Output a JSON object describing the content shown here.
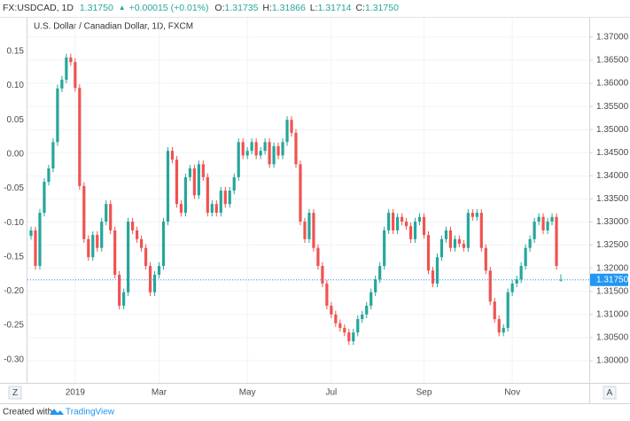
{
  "header": {
    "symbol": "FX:USDCAD, 1D",
    "price": "1.31750",
    "arrow": "▲",
    "change": "+0.00015 (+0.01%)",
    "ohlc": [
      {
        "key": "O:",
        "value": "1.31735"
      },
      {
        "key": "H:",
        "value": "1.31866"
      },
      {
        "key": "L:",
        "value": "1.31714"
      },
      {
        "key": "C:",
        "value": "1.31750"
      }
    ]
  },
  "footer": {
    "prefix": "Created with",
    "brand": "TradingView"
  },
  "buttons": {
    "left": "Z",
    "right": "A"
  },
  "chart_data": {
    "type": "candlestick",
    "title": "U.S. Dollar / Canadian Dollar, 1D, FXCM",
    "up_color": "#26a69a",
    "down_color": "#ef5350",
    "grid": true,
    "categories": [
      null,
      null,
      null,
      null,
      null,
      null,
      null,
      null,
      null,
      null,
      "2019",
      null,
      null,
      null,
      null,
      null,
      null,
      null,
      null,
      null,
      null,
      null,
      null,
      null,
      null,
      null,
      null,
      null,
      null,
      "Mar",
      null,
      null,
      null,
      null,
      null,
      null,
      null,
      null,
      null,
      null,
      null,
      null,
      null,
      null,
      null,
      null,
      null,
      null,
      null,
      "May",
      null,
      null,
      null,
      null,
      null,
      null,
      null,
      null,
      null,
      null,
      null,
      null,
      null,
      null,
      null,
      null,
      null,
      null,
      "Jul",
      null,
      null,
      null,
      null,
      null,
      null,
      null,
      null,
      null,
      null,
      null,
      null,
      null,
      null,
      null,
      null,
      null,
      null,
      null,
      null,
      "Sep",
      null,
      null,
      null,
      null,
      null,
      null,
      null,
      null,
      null,
      null,
      null,
      null,
      null,
      null,
      null,
      null,
      null,
      null,
      null,
      "Nov",
      null,
      null,
      null,
      null,
      null,
      null,
      null,
      null,
      null,
      null,
      null,
      null
    ],
    "candles": [
      [
        1.327,
        1.329,
        1.3262,
        1.3282
      ],
      [
        1.3282,
        1.329,
        1.3197,
        1.3205
      ],
      [
        1.3205,
        1.3328,
        1.3197,
        1.332
      ],
      [
        1.332,
        1.3395,
        1.3312,
        1.3387
      ],
      [
        1.3387,
        1.3424,
        1.3379,
        1.3416
      ],
      [
        1.3416,
        1.3481,
        1.3408,
        1.3473
      ],
      [
        1.3473,
        1.3597,
        1.3465,
        1.3589
      ],
      [
        1.3589,
        1.3616,
        1.3581,
        1.3608
      ],
      [
        1.3608,
        1.3664,
        1.36,
        1.3656
      ],
      [
        1.3656,
        1.3664,
        1.3638,
        1.3646
      ],
      [
        1.3646,
        1.3654,
        1.3582,
        1.359
      ],
      [
        1.359,
        1.3598,
        1.337,
        1.3378
      ],
      [
        1.3378,
        1.3386,
        1.3255,
        1.3263
      ],
      [
        1.3263,
        1.3271,
        1.3216,
        1.3224
      ],
      [
        1.3224,
        1.328,
        1.3216,
        1.3272
      ],
      [
        1.3272,
        1.328,
        1.3236,
        1.3244
      ],
      [
        1.3244,
        1.3309,
        1.3236,
        1.3301
      ],
      [
        1.3301,
        1.3347,
        1.3293,
        1.3339
      ],
      [
        1.3339,
        1.3347,
        1.3274,
        1.3282
      ],
      [
        1.3282,
        1.329,
        1.3178,
        1.3186
      ],
      [
        1.3186,
        1.3194,
        1.3111,
        1.3119
      ],
      [
        1.3119,
        1.3156,
        1.3111,
        1.3148
      ],
      [
        1.3148,
        1.3309,
        1.314,
        1.3301
      ],
      [
        1.3301,
        1.3309,
        1.3274,
        1.3282
      ],
      [
        1.3282,
        1.329,
        1.3255,
        1.3263
      ],
      [
        1.3263,
        1.3271,
        1.3236,
        1.3244
      ],
      [
        1.3244,
        1.3252,
        1.3197,
        1.3205
      ],
      [
        1.3205,
        1.3213,
        1.314,
        1.3148
      ],
      [
        1.3148,
        1.3194,
        1.314,
        1.3186
      ],
      [
        1.3186,
        1.3213,
        1.3178,
        1.3205
      ],
      [
        1.3205,
        1.3309,
        1.3197,
        1.3301
      ],
      [
        1.3301,
        1.3462,
        1.3293,
        1.3454
      ],
      [
        1.3454,
        1.3462,
        1.3427,
        1.3435
      ],
      [
        1.3435,
        1.3443,
        1.3331,
        1.3339
      ],
      [
        1.3339,
        1.3347,
        1.3312,
        1.332
      ],
      [
        1.332,
        1.3405,
        1.3312,
        1.3397
      ],
      [
        1.3397,
        1.3424,
        1.3389,
        1.3416
      ],
      [
        1.3416,
        1.3424,
        1.335,
        1.3358
      ],
      [
        1.3358,
        1.3433,
        1.335,
        1.3425
      ],
      [
        1.3425,
        1.3433,
        1.3389,
        1.3397
      ],
      [
        1.3397,
        1.3405,
        1.3312,
        1.332
      ],
      [
        1.332,
        1.3347,
        1.3312,
        1.3339
      ],
      [
        1.3339,
        1.3347,
        1.3312,
        1.332
      ],
      [
        1.332,
        1.3376,
        1.3312,
        1.3368
      ],
      [
        1.3368,
        1.3376,
        1.3331,
        1.3339
      ],
      [
        1.3339,
        1.3376,
        1.3331,
        1.3368
      ],
      [
        1.3368,
        1.3405,
        1.336,
        1.3397
      ],
      [
        1.3397,
        1.3481,
        1.3389,
        1.3473
      ],
      [
        1.3473,
        1.3481,
        1.3436,
        1.3444
      ],
      [
        1.3444,
        1.3462,
        1.3436,
        1.3454
      ],
      [
        1.3454,
        1.3481,
        1.3446,
        1.3473
      ],
      [
        1.3473,
        1.3481,
        1.3436,
        1.3444
      ],
      [
        1.3444,
        1.3462,
        1.3436,
        1.3454
      ],
      [
        1.3454,
        1.3481,
        1.3446,
        1.3473
      ],
      [
        1.3473,
        1.3481,
        1.3417,
        1.3425
      ],
      [
        1.3425,
        1.3472,
        1.3417,
        1.3464
      ],
      [
        1.3464,
        1.3472,
        1.3436,
        1.3444
      ],
      [
        1.3444,
        1.3481,
        1.3436,
        1.3473
      ],
      [
        1.3473,
        1.3529,
        1.3465,
        1.3521
      ],
      [
        1.3521,
        1.3529,
        1.3485,
        1.3493
      ],
      [
        1.3493,
        1.3501,
        1.3417,
        1.3425
      ],
      [
        1.3425,
        1.3433,
        1.3293,
        1.3301
      ],
      [
        1.3301,
        1.3309,
        1.3255,
        1.3263
      ],
      [
        1.3263,
        1.3328,
        1.3255,
        1.332
      ],
      [
        1.332,
        1.3328,
        1.3236,
        1.3244
      ],
      [
        1.3244,
        1.3252,
        1.3197,
        1.3205
      ],
      [
        1.3205,
        1.3213,
        1.3159,
        1.3167
      ],
      [
        1.3167,
        1.3175,
        1.3111,
        1.3119
      ],
      [
        1.3119,
        1.3127,
        1.3092,
        1.31
      ],
      [
        1.31,
        1.3108,
        1.3073,
        1.3081
      ],
      [
        1.3081,
        1.3089,
        1.3063,
        1.3071
      ],
      [
        1.3071,
        1.3079,
        1.3053,
        1.3061
      ],
      [
        1.3061,
        1.3069,
        1.3034,
        1.3042
      ],
      [
        1.3042,
        1.3069,
        1.3034,
        1.3061
      ],
      [
        1.3061,
        1.3098,
        1.3053,
        1.309
      ],
      [
        1.309,
        1.3108,
        1.3082,
        1.31
      ],
      [
        1.31,
        1.3127,
        1.3092,
        1.3119
      ],
      [
        1.3119,
        1.3156,
        1.3111,
        1.3148
      ],
      [
        1.3148,
        1.3184,
        1.314,
        1.3176
      ],
      [
        1.3176,
        1.3213,
        1.3168,
        1.3205
      ],
      [
        1.3205,
        1.329,
        1.3197,
        1.3282
      ],
      [
        1.3282,
        1.3328,
        1.3274,
        1.332
      ],
      [
        1.332,
        1.3328,
        1.3274,
        1.3282
      ],
      [
        1.3282,
        1.3319,
        1.3274,
        1.3311
      ],
      [
        1.3311,
        1.3319,
        1.3293,
        1.3301
      ],
      [
        1.3301,
        1.3309,
        1.3283,
        1.3291
      ],
      [
        1.3291,
        1.3299,
        1.3255,
        1.3263
      ],
      [
        1.3263,
        1.3309,
        1.3255,
        1.3301
      ],
      [
        1.3301,
        1.3319,
        1.3293,
        1.3311
      ],
      [
        1.3311,
        1.3319,
        1.3264,
        1.3272
      ],
      [
        1.3272,
        1.328,
        1.3187,
        1.3195
      ],
      [
        1.3195,
        1.3203,
        1.3159,
        1.3167
      ],
      [
        1.3167,
        1.3232,
        1.3159,
        1.3224
      ],
      [
        1.3224,
        1.3271,
        1.3216,
        1.3263
      ],
      [
        1.3263,
        1.329,
        1.3255,
        1.3282
      ],
      [
        1.3282,
        1.329,
        1.3236,
        1.3244
      ],
      [
        1.3244,
        1.3271,
        1.3236,
        1.3263
      ],
      [
        1.3263,
        1.3271,
        1.3245,
        1.3253
      ],
      [
        1.3253,
        1.3261,
        1.3236,
        1.3244
      ],
      [
        1.3244,
        1.3328,
        1.3236,
        1.332
      ],
      [
        1.332,
        1.3328,
        1.3303,
        1.3311
      ],
      [
        1.3311,
        1.3328,
        1.3303,
        1.332
      ],
      [
        1.332,
        1.3328,
        1.3236,
        1.3244
      ],
      [
        1.3244,
        1.3252,
        1.3187,
        1.3195
      ],
      [
        1.3195,
        1.3203,
        1.312,
        1.3128
      ],
      [
        1.3128,
        1.3136,
        1.3082,
        1.309
      ],
      [
        1.309,
        1.3098,
        1.3053,
        1.3061
      ],
      [
        1.3061,
        1.3079,
        1.3053,
        1.3071
      ],
      [
        1.3071,
        1.3156,
        1.3063,
        1.3148
      ],
      [
        1.3148,
        1.3175,
        1.314,
        1.3167
      ],
      [
        1.3167,
        1.3184,
        1.3159,
        1.3176
      ],
      [
        1.3176,
        1.3213,
        1.3168,
        1.3205
      ],
      [
        1.3205,
        1.3252,
        1.3197,
        1.3244
      ],
      [
        1.3244,
        1.3271,
        1.3236,
        1.3263
      ],
      [
        1.3263,
        1.3309,
        1.3255,
        1.3301
      ],
      [
        1.3301,
        1.3319,
        1.3293,
        1.3311
      ],
      [
        1.3311,
        1.3319,
        1.3274,
        1.3282
      ],
      [
        1.3282,
        1.3309,
        1.3274,
        1.3301
      ],
      [
        1.3301,
        1.3319,
        1.3293,
        1.3311
      ],
      [
        1.3311,
        1.3319,
        1.3197,
        1.3205
      ],
      [
        1.31735,
        1.31866,
        1.31714,
        1.3175
      ]
    ],
    "last_price": {
      "value": 1.3175,
      "label": "1.31750"
    },
    "last_price_color": "#2196f3",
    "ylim": [
      -0.334,
      0.199
    ],
    "yticks": [
      0.15,
      {
        "value": 0.1,
        "label": "0.10"
      },
      0.05,
      {
        "value": 0,
        "label": "0.00"
      },
      -0.05,
      {
        "value": -0.1,
        "label": "-0.10"
      },
      -0.15,
      {
        "value": -0.2,
        "label": "-0.20"
      },
      -0.25,
      {
        "value": -0.3,
        "label": "-0.30"
      }
    ],
    "y2lim": [
      1.2952,
      1.3742
    ],
    "y2ticks": [
      {
        "value": 1.3,
        "label": "1.30000"
      },
      {
        "value": 1.305,
        "label": "1.30500"
      },
      {
        "value": 1.31,
        "label": "1.31000"
      },
      {
        "value": 1.315,
        "label": "1.31500"
      },
      {
        "value": 1.32,
        "label": "1.32000"
      },
      {
        "value": 1.325,
        "label": "1.32500"
      },
      {
        "value": 1.33,
        "label": "1.33000"
      },
      {
        "value": 1.335,
        "label": "1.33500"
      },
      {
        "value": 1.34,
        "label": "1.34000"
      },
      {
        "value": 1.345,
        "label": "1.34500"
      },
      {
        "value": 1.35,
        "label": "1.35000"
      },
      {
        "value": 1.355,
        "label": "1.35500"
      },
      {
        "value": 1.36,
        "label": "1.36000"
      },
      {
        "value": 1.365,
        "label": "1.36500"
      },
      {
        "value": 1.37,
        "label": "1.37000"
      }
    ]
  }
}
